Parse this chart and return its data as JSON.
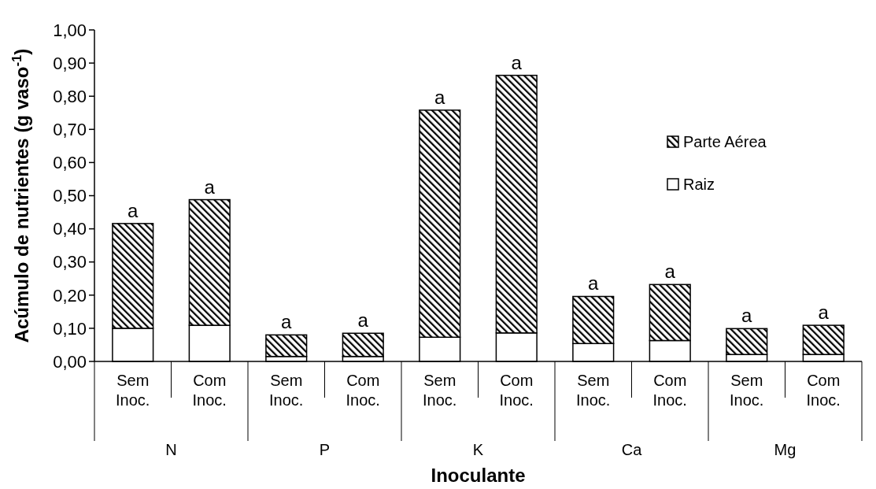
{
  "chart_data": {
    "type": "bar",
    "stacked": true,
    "xlabel": "Inoculante",
    "ylabel": "Acúmulo de nutrientes (g vaso$^{-1}$)",
    "categories": [
      "Sem Inoc.",
      "Com Inoc.",
      "Sem Inoc.",
      "Com Inoc.",
      "Sem Inoc.",
      "Com Inoc.",
      "Sem Inoc.",
      "Com Inoc.",
      "Sem Inoc.",
      "Com Inoc."
    ],
    "annotations": [
      "N",
      "P",
      "K",
      "Ca",
      "Mg"
    ],
    "series": [
      {
        "name": "Raiz",
        "color": "#ffffff",
        "values": [
          0.1,
          0.109,
          0.015,
          0.015,
          0.073,
          0.086,
          0.054,
          0.063,
          0.021,
          0.021
        ]
      },
      {
        "name": "Parte Aérea",
        "color": "#000000",
        "values": [
          0.316,
          0.379,
          0.065,
          0.07,
          0.685,
          0.777,
          0.142,
          0.169,
          0.078,
          0.088
        ],
        "value_labels": [
          "a",
          "a",
          "a",
          "a",
          "a",
          "a",
          "a",
          "a",
          "a",
          "a"
        ]
      }
    ],
    "ylim": [
      0,
      1
    ],
    "yticks": [
      {
        "value": 0,
        "label": "0,00"
      },
      {
        "value": 0.1,
        "label": "0,10"
      },
      {
        "value": 0.2,
        "label": "0,20"
      },
      {
        "value": 0.3,
        "label": "0,30"
      },
      {
        "value": 0.4,
        "label": "0,40"
      },
      {
        "value": 0.5,
        "label": "0,50"
      },
      {
        "value": 0.6,
        "label": "0,60"
      },
      {
        "value": 0.7,
        "label": "0,70"
      },
      {
        "value": 0.8,
        "label": "0,80"
      },
      {
        "value": 0.9,
        "label": "0,90"
      },
      {
        "value": 1,
        "label": "1,00"
      }
    ],
    "legend": "right"
  }
}
